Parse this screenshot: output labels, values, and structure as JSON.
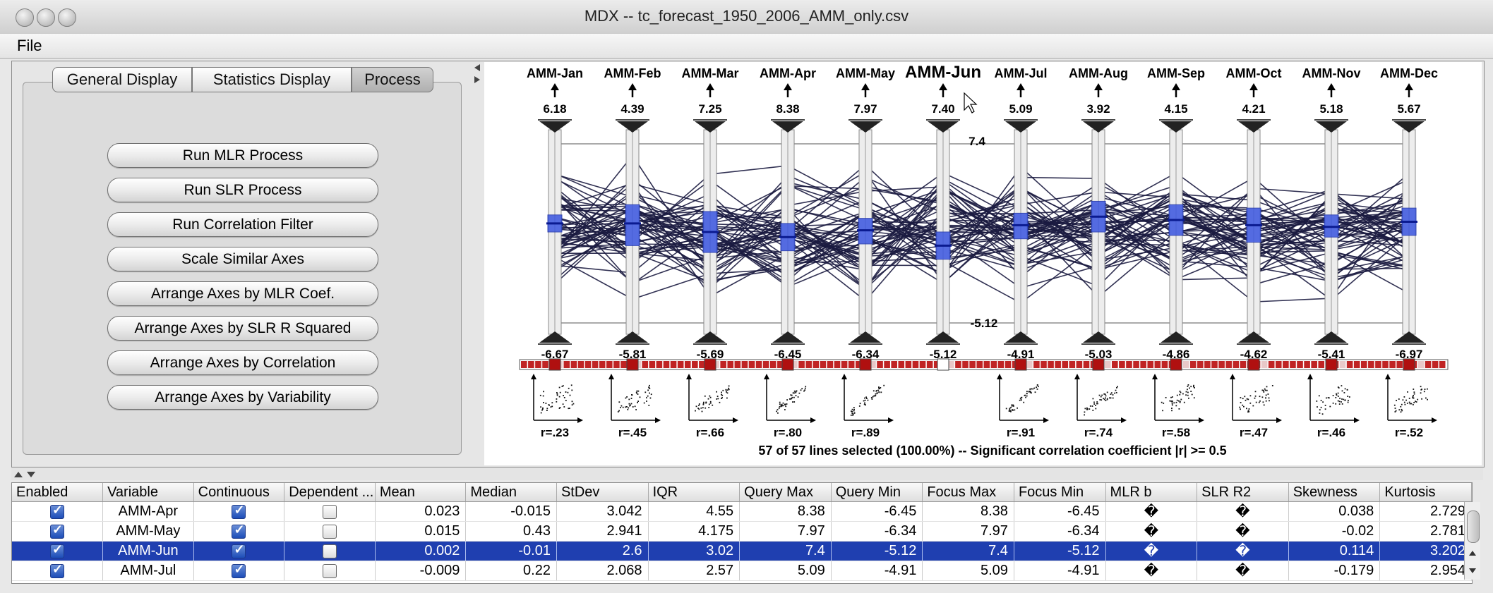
{
  "window": {
    "title": "MDX -- tc_forecast_1950_2006_AMM_only.csv"
  },
  "menubar": {
    "file": "File"
  },
  "tabs": [
    "General Display",
    "Statistics Display",
    "Process"
  ],
  "process_buttons": [
    "Run MLR Process",
    "Run SLR Process",
    "Run Correlation Filter",
    "Scale Similar Axes",
    "Arrange Axes by MLR Coef.",
    "Arrange Axes by SLR R Squared",
    "Arrange Axes by Correlation",
    "Arrange Axes by Variability"
  ],
  "chart_data": {
    "type": "parallel-coordinates",
    "axes": [
      {
        "name": "AMM-Jan",
        "max": "6.18",
        "min": "-6.67",
        "mean_frac": 0.45,
        "iqr": [
          0.4,
          0.5
        ],
        "r": "r=.23"
      },
      {
        "name": "AMM-Feb",
        "max": "4.39",
        "min": "-5.81",
        "mean_frac": 0.45,
        "iqr": [
          0.34,
          0.58
        ],
        "r": "r=.45"
      },
      {
        "name": "AMM-Mar",
        "max": "7.25",
        "min": "-5.69",
        "mean_frac": 0.5,
        "iqr": [
          0.38,
          0.62
        ],
        "r": "r=.66"
      },
      {
        "name": "AMM-Apr",
        "max": "8.38",
        "min": "-6.45",
        "mean_frac": 0.53,
        "iqr": [
          0.45,
          0.61
        ],
        "r": "r=.80"
      },
      {
        "name": "AMM-May",
        "max": "7.97",
        "min": "-6.34",
        "mean_frac": 0.49,
        "iqr": [
          0.42,
          0.57
        ],
        "r": "r=.89"
      },
      {
        "name": "AMM-Jun",
        "max": "7.40",
        "min": "-5.12",
        "mean_frac": 0.58,
        "iqr": [
          0.5,
          0.66
        ],
        "r": "",
        "highlighted": true
      },
      {
        "name": "AMM-Jul",
        "max": "5.09",
        "min": "-4.91",
        "mean_frac": 0.46,
        "iqr": [
          0.39,
          0.54
        ],
        "r": "r=.91"
      },
      {
        "name": "AMM-Aug",
        "max": "3.92",
        "min": "-5.03",
        "mean_frac": 0.41,
        "iqr": [
          0.32,
          0.5
        ],
        "r": "r=.74"
      },
      {
        "name": "AMM-Sep",
        "max": "4.15",
        "min": "-4.86",
        "mean_frac": 0.43,
        "iqr": [
          0.34,
          0.52
        ],
        "r": "r=.58"
      },
      {
        "name": "AMM-Oct",
        "max": "4.21",
        "min": "-4.62",
        "mean_frac": 0.46,
        "iqr": [
          0.36,
          0.56
        ],
        "r": "r=.47"
      },
      {
        "name": "AMM-Nov",
        "max": "5.18",
        "min": "-5.41",
        "mean_frac": 0.47,
        "iqr": [
          0.4,
          0.53
        ],
        "r": "r=.46"
      },
      {
        "name": "AMM-Dec",
        "max": "5.67",
        "min": "-6.97",
        "mean_frac": 0.44,
        "iqr": [
          0.36,
          0.52
        ],
        "r": "r=.52"
      }
    ],
    "focus_max_label": "7.4",
    "focus_min_label": "-5.12",
    "lines_total": 57,
    "status": "57 of 57 lines selected (100.00%)  --  Significant correlation coefficient  |r| >= 0.5"
  },
  "table": {
    "columns": [
      "Enabled",
      "Variable",
      "Continuous",
      "Dependent ...",
      "Mean",
      "Median",
      "StDev",
      "IQR",
      "Query Max",
      "Query Min",
      "Focus Max",
      "Focus Min",
      "MLR b",
      "SLR R2",
      "Skewness",
      "Kurtosis"
    ],
    "rows": [
      {
        "enabled": true,
        "variable": "AMM-Apr",
        "continuous": true,
        "dependent": false,
        "mean": "0.023",
        "median": "-0.015",
        "stdev": "3.042",
        "iqr": "4.55",
        "qmax": "8.38",
        "qmin": "-6.45",
        "fmax": "8.38",
        "fmin": "-6.45",
        "mlr": "�",
        "slr": "�",
        "skew": "0.038",
        "kurt": "2.729"
      },
      {
        "enabled": true,
        "variable": "AMM-May",
        "continuous": true,
        "dependent": false,
        "mean": "0.015",
        "median": "0.43",
        "stdev": "2.941",
        "iqr": "4.175",
        "qmax": "7.97",
        "qmin": "-6.34",
        "fmax": "7.97",
        "fmin": "-6.34",
        "mlr": "�",
        "slr": "�",
        "skew": "-0.02",
        "kurt": "2.781"
      },
      {
        "enabled": true,
        "variable": "AMM-Jun",
        "continuous": true,
        "dependent": false,
        "mean": "0.002",
        "median": "-0.01",
        "stdev": "2.6",
        "iqr": "3.02",
        "qmax": "7.4",
        "qmin": "-5.12",
        "fmax": "7.4",
        "fmin": "-5.12",
        "mlr": "�",
        "slr": "�",
        "skew": "0.114",
        "kurt": "3.202",
        "selected": true
      },
      {
        "enabled": true,
        "variable": "AMM-Jul",
        "continuous": true,
        "dependent": false,
        "mean": "-0.009",
        "median": "0.22",
        "stdev": "2.068",
        "iqr": "2.57",
        "qmax": "5.09",
        "qmin": "-4.91",
        "fmax": "5.09",
        "fmin": "-4.91",
        "mlr": "�",
        "slr": "�",
        "skew": "-0.179",
        "kurt": "2.954"
      }
    ]
  }
}
